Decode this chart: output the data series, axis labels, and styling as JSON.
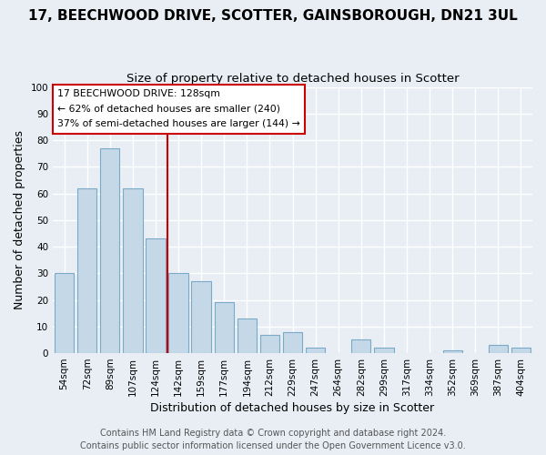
{
  "title": "17, BEECHWOOD DRIVE, SCOTTER, GAINSBOROUGH, DN21 3UL",
  "subtitle": "Size of property relative to detached houses in Scotter",
  "xlabel": "Distribution of detached houses by size in Scotter",
  "ylabel": "Number of detached properties",
  "bar_labels": [
    "54sqm",
    "72sqm",
    "89sqm",
    "107sqm",
    "124sqm",
    "142sqm",
    "159sqm",
    "177sqm",
    "194sqm",
    "212sqm",
    "229sqm",
    "247sqm",
    "264sqm",
    "282sqm",
    "299sqm",
    "317sqm",
    "334sqm",
    "352sqm",
    "369sqm",
    "387sqm",
    "404sqm"
  ],
  "bar_values": [
    30,
    62,
    77,
    62,
    43,
    30,
    27,
    19,
    13,
    7,
    8,
    2,
    0,
    5,
    2,
    0,
    0,
    1,
    0,
    3,
    2
  ],
  "bar_color": "#c5d8e8",
  "bar_edge_color": "#7baac8",
  "vline_x": 4.5,
  "vline_color": "#cc0000",
  "ylim": [
    0,
    100
  ],
  "annotation_title": "17 BEECHWOOD DRIVE: 128sqm",
  "annotation_line1": "← 62% of detached houses are smaller (240)",
  "annotation_line2": "37% of semi-detached houses are larger (144) →",
  "footer1": "Contains HM Land Registry data © Crown copyright and database right 2024.",
  "footer2": "Contains public sector information licensed under the Open Government Licence v3.0.",
  "background_color": "#e8eef4",
  "grid_color": "#ffffff",
  "title_fontsize": 11,
  "subtitle_fontsize": 9.5,
  "axis_label_fontsize": 9,
  "tick_fontsize": 7.5,
  "footer_fontsize": 7
}
